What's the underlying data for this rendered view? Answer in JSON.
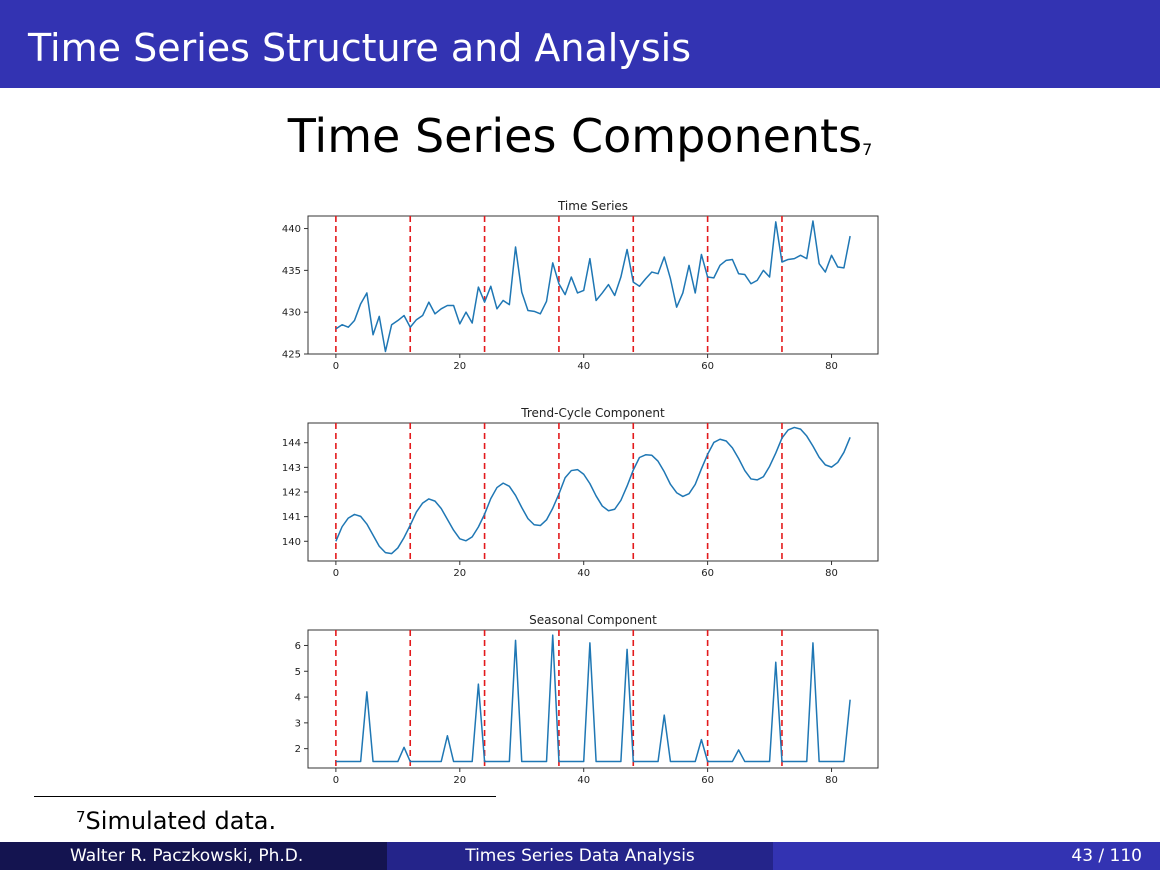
{
  "header": {
    "title": "Time Series Structure and Analysis"
  },
  "slide": {
    "title": "Time Series Components",
    "title_footnote_mark": "7"
  },
  "footnote": {
    "mark": "7",
    "text": "Simulated data."
  },
  "footer": {
    "author": "Walter R. Paczkowski, Ph.D.",
    "talk": "Times Series Data Analysis",
    "page": "43 / 110"
  },
  "colors": {
    "line": "#1f77b4",
    "vline": "#e31a1c",
    "header_bg": "#3333b2"
  },
  "chart_data": [
    {
      "type": "line",
      "title": "Time Series",
      "xlim": [
        -4.5,
        87.5
      ],
      "ylim": [
        425,
        441.5
      ],
      "xticks": [
        0,
        20,
        40,
        60,
        80
      ],
      "yticks": [
        425,
        430,
        435,
        440
      ],
      "vlines": [
        0,
        12,
        24,
        36,
        48,
        60,
        72
      ],
      "values": [
        428.0,
        428.5,
        428.2,
        429.0,
        431.0,
        432.3,
        427.3,
        429.5,
        425.3,
        428.5,
        429.0,
        429.6,
        428.2,
        429.1,
        429.6,
        431.2,
        429.8,
        430.4,
        430.8,
        430.8,
        428.6,
        430.0,
        428.7,
        433.0,
        431.2,
        433.1,
        430.4,
        431.4,
        430.9,
        437.8,
        432.4,
        430.2,
        430.1,
        429.8,
        431.3,
        435.9,
        433.4,
        432.1,
        434.2,
        432.3,
        432.6,
        436.4,
        431.4,
        432.3,
        433.3,
        432.0,
        434.2,
        437.5,
        433.6,
        433.1,
        434.0,
        434.8,
        434.6,
        436.6,
        434.0,
        430.6,
        432.3,
        435.6,
        432.3,
        436.9,
        434.2,
        434.1,
        435.6,
        436.2,
        436.3,
        434.6,
        434.5,
        433.4,
        433.8,
        435.0,
        434.2,
        440.8,
        436.0,
        436.3,
        436.4,
        436.8,
        436.4,
        440.9,
        435.8,
        434.8,
        436.8,
        435.4,
        435.3,
        439.1
      ]
    },
    {
      "type": "line",
      "title": "Trend-Cycle Component",
      "xlim": [
        -4.5,
        87.5
      ],
      "ylim": [
        139.2,
        144.8
      ],
      "xticks": [
        0,
        20,
        40,
        60,
        80
      ],
      "yticks": [
        140,
        141,
        142,
        143,
        144
      ],
      "vlines": [
        0,
        12,
        24,
        36,
        48,
        60,
        72
      ],
      "values": [
        140.0,
        140.59,
        140.94,
        141.09,
        141.01,
        140.7,
        140.25,
        139.8,
        139.54,
        139.5,
        139.73,
        140.15,
        140.65,
        141.19,
        141.55,
        141.72,
        141.63,
        141.33,
        140.89,
        140.45,
        140.1,
        140.02,
        140.18,
        140.58,
        141.1,
        141.73,
        142.18,
        142.36,
        142.23,
        141.86,
        141.37,
        140.92,
        140.67,
        140.64,
        140.87,
        141.34,
        141.92,
        142.58,
        142.87,
        142.91,
        142.72,
        142.34,
        141.84,
        141.43,
        141.24,
        141.3,
        141.66,
        142.24,
        142.89,
        143.4,
        143.51,
        143.49,
        143.25,
        142.82,
        142.31,
        141.97,
        141.82,
        141.93,
        142.31,
        142.94,
        143.53,
        144.01,
        144.14,
        144.07,
        143.79,
        143.36,
        142.87,
        142.53,
        142.49,
        142.62,
        143.04,
        143.58,
        144.19,
        144.52,
        144.62,
        144.55,
        144.27,
        143.86,
        143.41,
        143.1,
        143.01,
        143.2,
        143.61,
        144.22
      ]
    },
    {
      "type": "line",
      "title": "Seasonal Component",
      "xlim": [
        -4.5,
        87.5
      ],
      "ylim": [
        1.25,
        6.6
      ],
      "xticks": [
        0,
        20,
        40,
        60,
        80
      ],
      "yticks": [
        2,
        3,
        4,
        5,
        6
      ],
      "vlines": [
        0,
        12,
        24,
        36,
        48,
        60,
        72
      ],
      "values": [
        1.5,
        1.5,
        1.5,
        1.5,
        1.5,
        4.2,
        1.5,
        1.5,
        1.5,
        1.5,
        1.5,
        2.05,
        1.5,
        1.5,
        1.5,
        1.5,
        1.5,
        1.5,
        2.5,
        1.5,
        1.5,
        1.5,
        1.5,
        4.5,
        1.5,
        1.5,
        1.5,
        1.5,
        1.5,
        6.2,
        1.5,
        1.5,
        1.5,
        1.5,
        1.5,
        6.4,
        1.5,
        1.5,
        1.5,
        1.5,
        1.5,
        6.1,
        1.5,
        1.5,
        1.5,
        1.5,
        1.5,
        5.85,
        1.5,
        1.5,
        1.5,
        1.5,
        1.5,
        3.3,
        1.5,
        1.5,
        1.5,
        1.5,
        1.5,
        2.35,
        1.5,
        1.5,
        1.5,
        1.5,
        1.5,
        1.95,
        1.5,
        1.5,
        1.5,
        1.5,
        1.5,
        5.35,
        1.5,
        1.5,
        1.5,
        1.5,
        1.5,
        6.1,
        1.5,
        1.5,
        1.5,
        1.5,
        1.5,
        3.9
      ]
    }
  ]
}
